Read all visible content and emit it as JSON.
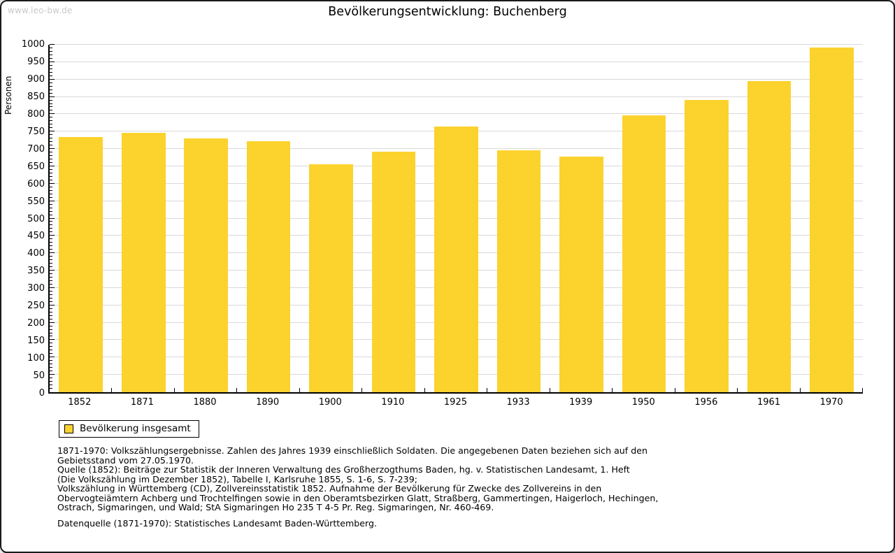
{
  "page": {
    "watermark": "www.leo-bw.de",
    "title": "Bevölkerungsentwicklung: Buchenberg"
  },
  "colors": {
    "bar": "#fcd22d",
    "grid": "#d9d9d9",
    "axis": "#000000",
    "watermark": "#c9c9c9"
  },
  "chart_data": {
    "type": "bar",
    "title": "Bevölkerungsentwicklung: Buchenberg",
    "xlabel": "",
    "ylabel": "Personen",
    "categories": [
      "1852",
      "1871",
      "1880",
      "1890",
      "1900",
      "1910",
      "1925",
      "1933",
      "1939",
      "1950",
      "1956",
      "1961",
      "1970"
    ],
    "values": [
      735,
      746,
      731,
      722,
      656,
      693,
      765,
      696,
      678,
      797,
      842,
      896,
      992
    ],
    "series_name": "Bevölkerung insgesamt",
    "ylim": [
      0,
      1000
    ],
    "ytick_step": 50,
    "ytick_minor_step": 10,
    "grid": true,
    "bar_color": "#fcd22d",
    "legend_position": "bottom-left"
  },
  "legend": {
    "label": "Bevölkerung insgesamt"
  },
  "footnotes": {
    "block1_lines": [
      "1871-1970: Volkszählungsergebnisse. Zahlen des Jahres 1939 einschließlich Soldaten. Die angegebenen Daten beziehen sich auf den",
      "Gebietsstand vom 27.05.1970.",
      "Quelle (1852): Beiträge zur Statistik der Inneren Verwaltung des Großherzogthums Baden, hg. v. Statistischen Landesamt, 1. Heft",
      "(Die Volkszählung im Dezember 1852), Tabelle I, Karlsruhe 1855, S. 1-6, S. 7-239;",
      "Volkszählung in Württemberg (CD), Zollvereinsstatistik 1852. Aufnahme der Bevölkerung für Zwecke des Zollvereins in den",
      "Obervogteiämtern Achberg und Trochtelfingen sowie in den Oberamtsbezirken Glatt, Straßberg, Gammertingen, Haigerloch, Hechingen,",
      "Ostrach, Sigmaringen, und Wald; StA Sigmaringen Ho 235 T 4-5 Pr. Reg. Sigmaringen, Nr. 460-469."
    ],
    "block2": "Datenquelle (1871-1970): Statistisches Landesamt Baden-Württemberg."
  }
}
